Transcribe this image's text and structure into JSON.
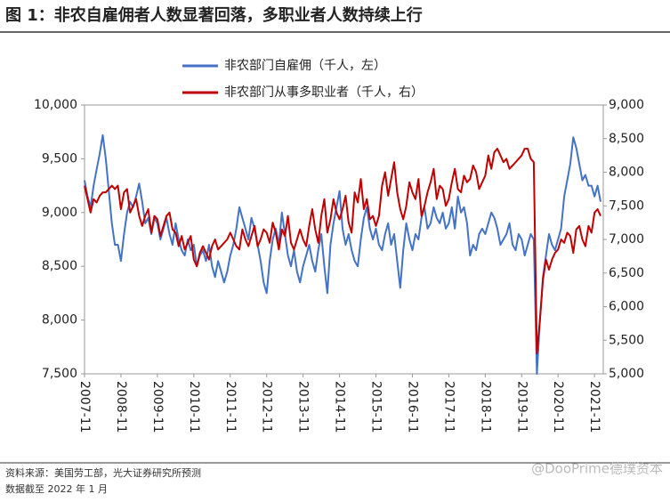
{
  "chart_data": {
    "type": "line",
    "title": "图 1：非农自雇佣者人数显著回落，多职业者人数持续上行",
    "source": "资料来源：美国劳工部，光大证券研究所预测",
    "note": "数据截至 2022 年 1 月",
    "watermark": "@DooPrime德璞资本",
    "categories": [
      "2007-11",
      null,
      null,
      null,
      null,
      null,
      null,
      null,
      null,
      null,
      null,
      null,
      "2008-11",
      null,
      null,
      null,
      null,
      null,
      null,
      null,
      null,
      null,
      null,
      null,
      "2009-11",
      null,
      null,
      null,
      null,
      null,
      null,
      null,
      null,
      null,
      null,
      null,
      "2010-11",
      null,
      null,
      null,
      null,
      null,
      null,
      null,
      null,
      null,
      null,
      null,
      "2011-11",
      null,
      null,
      null,
      null,
      null,
      null,
      null,
      null,
      null,
      null,
      null,
      "2012-11",
      null,
      null,
      null,
      null,
      null,
      null,
      null,
      null,
      null,
      null,
      null,
      "2013-11",
      null,
      null,
      null,
      null,
      null,
      null,
      null,
      null,
      null,
      null,
      null,
      "2014-11",
      null,
      null,
      null,
      null,
      null,
      null,
      null,
      null,
      null,
      null,
      null,
      "2015-11",
      null,
      null,
      null,
      null,
      null,
      null,
      null,
      null,
      null,
      null,
      null,
      "2016-11",
      null,
      null,
      null,
      null,
      null,
      null,
      null,
      null,
      null,
      null,
      null,
      "2017-11",
      null,
      null,
      null,
      null,
      null,
      null,
      null,
      null,
      null,
      null,
      null,
      "2018-11",
      null,
      null,
      null,
      null,
      null,
      null,
      null,
      null,
      null,
      null,
      null,
      "2019-11",
      null,
      null,
      null,
      null,
      null,
      null,
      null,
      null,
      null,
      null,
      null,
      "2020-11",
      null,
      null,
      null,
      null,
      null,
      null,
      null,
      null,
      null,
      null,
      null,
      "2021-11",
      null,
      null
    ],
    "series": [
      {
        "name": "非农部门自雇佣（千人，左）",
        "color": "#4472c4",
        "axis": "y",
        "values": [
          9300,
          9150,
          9050,
          9250,
          9400,
          9550,
          9720,
          9500,
          9200,
          8900,
          8700,
          8700,
          8550,
          8800,
          9000,
          9100,
          9050,
          9150,
          9270,
          9100,
          8900,
          8950,
          8800,
          8950,
          8900,
          8750,
          8850,
          8950,
          8800,
          8700,
          8900,
          8750,
          8650,
          8600,
          8750,
          8650,
          8700,
          8500,
          8600,
          8650,
          8550,
          8700,
          8500,
          8400,
          8550,
          8450,
          8350,
          8450,
          8600,
          8700,
          8850,
          9050,
          8950,
          8850,
          8750,
          8950,
          8850,
          8700,
          8550,
          8350,
          8250,
          8550,
          8750,
          8850,
          8700,
          9000,
          8800,
          8600,
          8500,
          8650,
          8450,
          8350,
          8500,
          8600,
          8700,
          8550,
          8450,
          8650,
          8800,
          8500,
          8250,
          8700,
          8900,
          9050,
          9200,
          8850,
          8700,
          8800,
          8650,
          8550,
          8500,
          8750,
          8950,
          9050,
          8850,
          8750,
          8850,
          8700,
          8650,
          8800,
          8900,
          8700,
          8800,
          8550,
          8300,
          8650,
          8900,
          8750,
          8650,
          8800,
          8750,
          8950,
          9050,
          8850,
          8900,
          9050,
          8950,
          8900,
          9000,
          8850,
          8900,
          9050,
          8850,
          9150,
          9000,
          9050,
          8900,
          8600,
          8700,
          8650,
          8800,
          8850,
          8800,
          8900,
          9000,
          8950,
          8850,
          8700,
          8750,
          8800,
          8900,
          8700,
          8650,
          8800,
          8750,
          8600,
          8700,
          8800,
          8750,
          7500,
          8000,
          8400,
          8600,
          8800,
          8700,
          8650,
          8750,
          8850,
          9150,
          9300,
          9450,
          9700,
          9600,
          9450,
          9300,
          9350,
          9250,
          9250,
          9150,
          9250,
          9100
        ]
      },
      {
        "name": "非农部门从事多职业者（千人，右）",
        "color": "#c00000",
        "axis": "y2",
        "values": [
          7800,
          7600,
          7400,
          7600,
          7550,
          7650,
          7700,
          7700,
          7750,
          7800,
          7750,
          7800,
          7450,
          7700,
          7750,
          7400,
          7500,
          7600,
          7350,
          7200,
          7350,
          7450,
          7100,
          7350,
          7300,
          7050,
          7200,
          7350,
          7400,
          7150,
          7100,
          6900,
          7050,
          6850,
          6950,
          7050,
          6700,
          6600,
          6800,
          6900,
          6800,
          6700,
          6900,
          7000,
          6850,
          6900,
          6950,
          7000,
          7100,
          7000,
          6900,
          6850,
          7150,
          7000,
          6900,
          7050,
          7200,
          6900,
          7000,
          7150,
          7100,
          6950,
          7250,
          7100,
          6850,
          7150,
          7050,
          7350,
          6950,
          6850,
          7000,
          7150,
          7000,
          6900,
          7200,
          7450,
          7150,
          6950,
          7350,
          7600,
          7100,
          7300,
          7600,
          7400,
          7300,
          7450,
          7650,
          7250,
          7100,
          7700,
          7550,
          7900,
          7450,
          7600,
          7300,
          7350,
          7200,
          7350,
          7800,
          8000,
          7650,
          7900,
          8150,
          7700,
          7450,
          7300,
          7500,
          7850,
          7700,
          7600,
          7900,
          7350,
          7500,
          7700,
          7850,
          8050,
          7600,
          7800,
          7750,
          7500,
          7600,
          7850,
          8050,
          7750,
          7700,
          7950,
          7850,
          7900,
          8100,
          8000,
          7750,
          7850,
          7950,
          8250,
          8050,
          8300,
          8350,
          8250,
          8150,
          8200,
          8050,
          8100,
          8150,
          8200,
          8250,
          8350,
          8350,
          8200,
          8150,
          5300,
          5800,
          6400,
          6700,
          6550,
          6700,
          6800,
          6850,
          7000,
          6950,
          7100,
          7050,
          6800,
          7150,
          7200,
          7000,
          6900,
          7200,
          7100,
          7400,
          7450,
          7350
        ]
      }
    ],
    "ylim": [
      7500,
      10000
    ],
    "yticks": [
      {
        "value": 7500,
        "label": "7,500"
      },
      {
        "value": 8000,
        "label": "8,000"
      },
      {
        "value": 8500,
        "label": "8,500"
      },
      {
        "value": 9000,
        "label": "9,000"
      },
      {
        "value": 9500,
        "label": "9,500"
      },
      {
        "value": 10000,
        "label": "10,000"
      }
    ],
    "y2lim": [
      5000,
      9000
    ],
    "y2ticks": [
      {
        "value": 5000,
        "label": "5,000"
      },
      {
        "value": 5500,
        "label": "5,500"
      },
      {
        "value": 6000,
        "label": "6,000"
      },
      {
        "value": 6500,
        "label": "6,500"
      },
      {
        "value": 7000,
        "label": "7,000"
      },
      {
        "value": 7500,
        "label": "7,500"
      },
      {
        "value": 8000,
        "label": "8,000"
      },
      {
        "value": 8500,
        "label": "8,500"
      },
      {
        "value": 9000,
        "label": "9,000"
      }
    ],
    "legend": "top"
  }
}
